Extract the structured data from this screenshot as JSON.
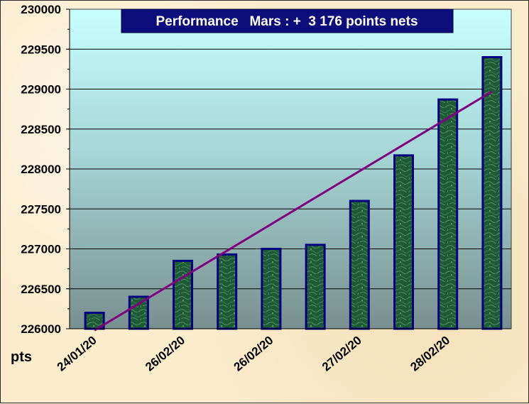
{
  "chart_data": {
    "type": "bar",
    "title": "Performance   Mars : +  3 176 points nets",
    "ylabel": "pts",
    "xlabel": "",
    "ylim": [
      226000,
      230000
    ],
    "ytick_step": 500,
    "yticks": [
      "226000",
      "226500",
      "227000",
      "227500",
      "228000",
      "228500",
      "229000",
      "229500",
      "230000"
    ],
    "categories": [
      "24/01/20",
      "",
      "26/02/20",
      "",
      "26/02/20",
      "",
      "27/02/20",
      "",
      "28/02/20",
      ""
    ],
    "values": [
      226200,
      226400,
      226850,
      226930,
      227000,
      227050,
      227600,
      228170,
      228870,
      229400
    ],
    "trendline": {
      "type": "linear",
      "start": 225980,
      "end": 228970
    },
    "grid": true,
    "colors": {
      "bar_fill": "#1e5a36",
      "bar_border": "#000080",
      "trendline": "#800080",
      "plot_top": "#c8ffff",
      "plot_bottom": "#78908f",
      "title_bg": "#0c0c7a",
      "title_text": "#ffffff"
    }
  }
}
